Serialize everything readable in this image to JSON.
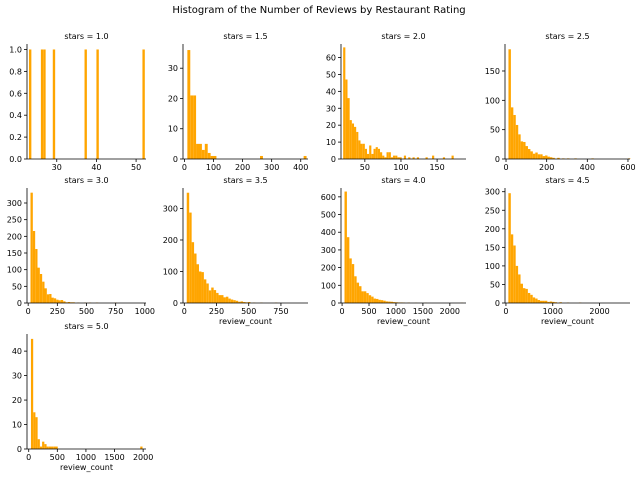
{
  "figure": {
    "title": "Histogram of the Number of Reviews by Restaurant Rating",
    "bar_color": "#FFA500",
    "axis_color": "#000000",
    "background": "#ffffff"
  },
  "chart_data": [
    {
      "type": "bar",
      "title": "stars = 1.0",
      "xlabel": "",
      "xlim": [
        22.5,
        52.5
      ],
      "ylim": [
        0,
        1.05
      ],
      "xticks": [
        30,
        40,
        50
      ],
      "yticks": [
        0.0,
        0.2,
        0.4,
        0.6,
        0.8,
        1.0
      ],
      "ytick_format": "1",
      "bin_width": 0.6,
      "bins": [
        [
          23.0,
          1
        ],
        [
          26.0,
          1
        ],
        [
          26.6,
          1
        ],
        [
          29.0,
          1
        ],
        [
          37.0,
          1
        ],
        [
          40.0,
          1
        ],
        [
          51.6,
          1
        ]
      ]
    },
    {
      "type": "bar",
      "title": "stars = 1.5",
      "xlabel": "",
      "xlim": [
        -5,
        425
      ],
      "ylim": [
        0,
        38
      ],
      "xticks": [
        0,
        100,
        200,
        300,
        400
      ],
      "yticks": [
        0,
        10,
        20,
        30
      ],
      "bin_width": 10,
      "bins": [
        [
          10,
          36
        ],
        [
          20,
          21
        ],
        [
          30,
          21
        ],
        [
          40,
          5
        ],
        [
          50,
          5
        ],
        [
          60,
          3
        ],
        [
          70,
          5
        ],
        [
          80,
          2
        ],
        [
          90,
          1
        ],
        [
          100,
          1
        ],
        [
          260,
          1
        ],
        [
          410,
          1
        ]
      ]
    },
    {
      "type": "bar",
      "title": "stars = 2.0",
      "xlabel": "",
      "xlim": [
        17,
        190
      ],
      "ylim": [
        0,
        68
      ],
      "xticks": [
        50,
        100,
        150
      ],
      "yticks": [
        0,
        10,
        20,
        30,
        40,
        50,
        60
      ],
      "bin_width": 3,
      "bins": [
        [
          20,
          66
        ],
        [
          23,
          47
        ],
        [
          26,
          36
        ],
        [
          29,
          23
        ],
        [
          32,
          21
        ],
        [
          35,
          19
        ],
        [
          38,
          16
        ],
        [
          41,
          11
        ],
        [
          44,
          9
        ],
        [
          47,
          9
        ],
        [
          50,
          6
        ],
        [
          53,
          3
        ],
        [
          56,
          8
        ],
        [
          59,
          3
        ],
        [
          62,
          6
        ],
        [
          65,
          7
        ],
        [
          68,
          6
        ],
        [
          71,
          4
        ],
        [
          74,
          2
        ],
        [
          77,
          1
        ],
        [
          80,
          4
        ],
        [
          83,
          4
        ],
        [
          86,
          1
        ],
        [
          89,
          2
        ],
        [
          92,
          2
        ],
        [
          95,
          1
        ],
        [
          98,
          1
        ],
        [
          104,
          2
        ],
        [
          110,
          1
        ],
        [
          116,
          1
        ],
        [
          122,
          1
        ],
        [
          134,
          1
        ],
        [
          143,
          2
        ],
        [
          158,
          1
        ],
        [
          170,
          2
        ]
      ]
    },
    {
      "type": "bar",
      "title": "stars = 2.5",
      "xlabel": "",
      "xlim": [
        -5,
        610
      ],
      "ylim": [
        0,
        196
      ],
      "xticks": [
        0,
        200,
        400,
        600
      ],
      "yticks": [
        0,
        50,
        100,
        150
      ],
      "bin_width": 12,
      "bins": [
        [
          12,
          187
        ],
        [
          24,
          88
        ],
        [
          36,
          75
        ],
        [
          48,
          58
        ],
        [
          60,
          42
        ],
        [
          72,
          30
        ],
        [
          84,
          29
        ],
        [
          96,
          22
        ],
        [
          108,
          17
        ],
        [
          120,
          13
        ],
        [
          132,
          9
        ],
        [
          144,
          11
        ],
        [
          156,
          8
        ],
        [
          168,
          8
        ],
        [
          180,
          5
        ],
        [
          192,
          6
        ],
        [
          204,
          4
        ],
        [
          216,
          3
        ],
        [
          228,
          2
        ],
        [
          252,
          2
        ],
        [
          276,
          1
        ],
        [
          300,
          1
        ],
        [
          336,
          1
        ],
        [
          420,
          1
        ],
        [
          600,
          1
        ]
      ]
    },
    {
      "type": "bar",
      "title": "stars = 3.0",
      "xlabel": "",
      "xlim": [
        -10,
        1010
      ],
      "ylim": [
        0,
        345
      ],
      "xticks": [
        0,
        250,
        500,
        750,
        1000
      ],
      "yticks": [
        0,
        50,
        100,
        150,
        200,
        250,
        300
      ],
      "bin_width": 20,
      "bins": [
        [
          20,
          331
        ],
        [
          40,
          216
        ],
        [
          60,
          162
        ],
        [
          80,
          106
        ],
        [
          100,
          87
        ],
        [
          120,
          64
        ],
        [
          140,
          44
        ],
        [
          160,
          26
        ],
        [
          180,
          27
        ],
        [
          200,
          16
        ],
        [
          220,
          14
        ],
        [
          240,
          10
        ],
        [
          260,
          8
        ],
        [
          280,
          9
        ],
        [
          300,
          5
        ],
        [
          320,
          2
        ],
        [
          340,
          3
        ],
        [
          360,
          2
        ],
        [
          380,
          2
        ],
        [
          420,
          1
        ],
        [
          480,
          1
        ],
        [
          520,
          1
        ],
        [
          580,
          1
        ],
        [
          740,
          1
        ]
      ]
    },
    {
      "type": "bar",
      "title": "stars = 3.5",
      "xlabel": "review_count",
      "xlim": [
        -10,
        960
      ],
      "ylim": [
        0,
        365
      ],
      "xticks": [
        0,
        250,
        500,
        750
      ],
      "yticks": [
        0,
        100,
        200,
        300
      ],
      "bin_width": 19,
      "bins": [
        [
          19,
          350
        ],
        [
          38,
          287
        ],
        [
          57,
          193
        ],
        [
          76,
          157
        ],
        [
          95,
          123
        ],
        [
          114,
          100
        ],
        [
          133,
          98
        ],
        [
          152,
          75
        ],
        [
          171,
          62
        ],
        [
          190,
          40
        ],
        [
          209,
          49
        ],
        [
          228,
          41
        ],
        [
          247,
          32
        ],
        [
          266,
          25
        ],
        [
          285,
          25
        ],
        [
          304,
          18
        ],
        [
          323,
          20
        ],
        [
          342,
          14
        ],
        [
          361,
          11
        ],
        [
          380,
          9
        ],
        [
          399,
          7
        ],
        [
          418,
          4
        ],
        [
          437,
          5
        ],
        [
          456,
          3
        ],
        [
          475,
          2
        ],
        [
          494,
          3
        ],
        [
          532,
          1
        ],
        [
          589,
          1
        ],
        [
          703,
          1
        ]
      ]
    },
    {
      "type": "bar",
      "title": "stars = 4.0",
      "xlabel": "review_count",
      "xlim": [
        -20,
        2300
      ],
      "ylim": [
        0,
        650
      ],
      "xticks": [
        0,
        500,
        1000,
        1500,
        2000
      ],
      "yticks": [
        0,
        100,
        200,
        300,
        400,
        500,
        600
      ],
      "bin_width": 45,
      "bins": [
        [
          45,
          630
        ],
        [
          90,
          372
        ],
        [
          135,
          252
        ],
        [
          180,
          220
        ],
        [
          225,
          151
        ],
        [
          270,
          115
        ],
        [
          315,
          95
        ],
        [
          360,
          66
        ],
        [
          405,
          66
        ],
        [
          450,
          56
        ],
        [
          495,
          44
        ],
        [
          540,
          36
        ],
        [
          585,
          25
        ],
        [
          630,
          23
        ],
        [
          675,
          18
        ],
        [
          720,
          16
        ],
        [
          765,
          13
        ],
        [
          810,
          9
        ],
        [
          855,
          8
        ],
        [
          900,
          7
        ],
        [
          945,
          5
        ],
        [
          990,
          4
        ],
        [
          1035,
          3
        ],
        [
          1080,
          3
        ],
        [
          1125,
          2
        ],
        [
          1215,
          2
        ],
        [
          1350,
          1
        ],
        [
          1530,
          1
        ],
        [
          2200,
          1
        ]
      ]
    },
    {
      "type": "bar",
      "title": "stars = 4.5",
      "xlabel": "review_count",
      "xlim": [
        -20,
        2650
      ],
      "ylim": [
        0,
        310
      ],
      "xticks": [
        0,
        1000,
        2000
      ],
      "yticks": [
        0,
        50,
        100,
        150,
        200,
        250,
        300
      ],
      "bin_width": 52,
      "bins": [
        [
          52,
          296
        ],
        [
          104,
          185
        ],
        [
          156,
          155
        ],
        [
          208,
          100
        ],
        [
          260,
          77
        ],
        [
          312,
          52
        ],
        [
          364,
          40
        ],
        [
          416,
          38
        ],
        [
          468,
          27
        ],
        [
          520,
          22
        ],
        [
          572,
          15
        ],
        [
          624,
          12
        ],
        [
          676,
          8
        ],
        [
          728,
          6
        ],
        [
          780,
          6
        ],
        [
          832,
          6
        ],
        [
          884,
          3
        ],
        [
          936,
          4
        ],
        [
          988,
          3
        ],
        [
          1040,
          2
        ],
        [
          1144,
          2
        ],
        [
          1300,
          1
        ],
        [
          1560,
          1
        ]
      ]
    },
    {
      "type": "bar",
      "title": "stars = 5.0",
      "xlabel": "review_count",
      "xlim": [
        -30,
        2050
      ],
      "ylim": [
        0,
        47
      ],
      "xticks": [
        0,
        500,
        1000,
        1500,
        2000
      ],
      "yticks": [
        0,
        10,
        20,
        30,
        40
      ],
      "bin_width": 39,
      "bins": [
        [
          39,
          45
        ],
        [
          78,
          15
        ],
        [
          117,
          13
        ],
        [
          156,
          4
        ],
        [
          195,
          1
        ],
        [
          234,
          3
        ],
        [
          273,
          2
        ],
        [
          312,
          1
        ],
        [
          351,
          1
        ],
        [
          390,
          1
        ],
        [
          429,
          1
        ],
        [
          468,
          1
        ],
        [
          1950,
          1
        ]
      ]
    }
  ]
}
